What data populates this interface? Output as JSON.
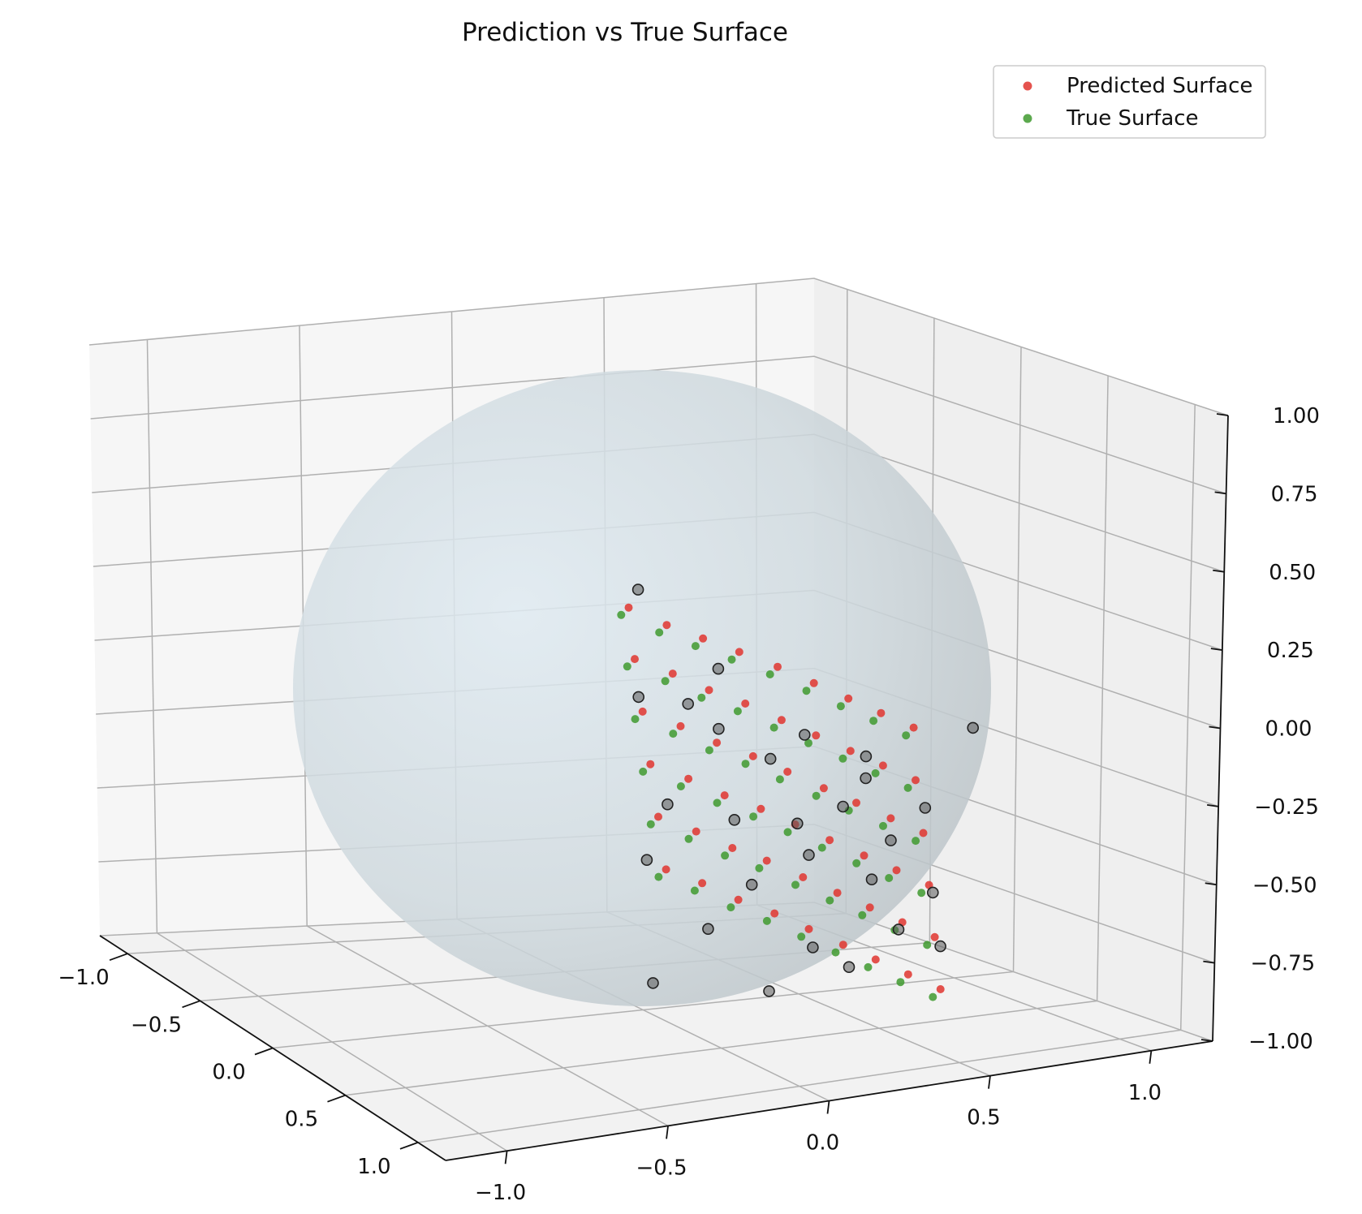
{
  "chart_data": {
    "type": "scatter",
    "projection": "3d",
    "title": "Prediction vs True Surface",
    "xlabel": "",
    "ylabel": "",
    "zlabel": "",
    "xlim": [
      -1.0,
      1.0
    ],
    "ylim": [
      -1.0,
      1.0
    ],
    "zlim": [
      -1.0,
      1.0
    ],
    "x_ticks": [
      "−1.0",
      "−0.5",
      "0.0",
      "0.5",
      "1.0"
    ],
    "y_ticks": [
      "−1.0",
      "−0.5",
      "0.0",
      "0.5",
      "1.0"
    ],
    "z_ticks": [
      "−1.00",
      "−0.75",
      "−0.50",
      "−0.25",
      "0.00",
      "0.25",
      "0.50",
      "0.75",
      "1.00"
    ],
    "grid": true,
    "legend_position": "top-right",
    "surface": {
      "kind": "sphere",
      "radius": 1.0,
      "color": "#c9d8e2",
      "alpha": 0.35
    },
    "series": [
      {
        "name": "Predicted Surface",
        "color": "#e0352f",
        "points": [
          [
            0.93,
            -0.49,
            0.74
          ],
          [
            0.95,
            -0.4,
            0.67
          ],
          [
            0.96,
            -0.31,
            0.61
          ],
          [
            0.97,
            -0.22,
            0.55
          ],
          [
            0.97,
            -0.12,
            0.48
          ],
          [
            0.98,
            -0.03,
            0.41
          ],
          [
            0.98,
            0.06,
            0.34
          ],
          [
            0.97,
            0.15,
            0.27
          ],
          [
            0.96,
            0.24,
            0.2
          ],
          [
            0.9,
            -0.46,
            0.55
          ],
          [
            0.92,
            -0.37,
            0.49
          ],
          [
            0.93,
            -0.28,
            0.42
          ],
          [
            0.94,
            -0.19,
            0.36
          ],
          [
            0.95,
            -0.1,
            0.29
          ],
          [
            0.95,
            -0.01,
            0.22
          ],
          [
            0.95,
            0.08,
            0.15
          ],
          [
            0.94,
            0.17,
            0.08
          ],
          [
            0.93,
            0.26,
            0.01
          ],
          [
            0.88,
            -0.43,
            0.36
          ],
          [
            0.9,
            -0.34,
            0.3
          ],
          [
            0.91,
            -0.25,
            0.23
          ],
          [
            0.92,
            -0.16,
            0.17
          ],
          [
            0.92,
            -0.07,
            0.1
          ],
          [
            0.93,
            0.02,
            0.03
          ],
          [
            0.92,
            0.11,
            -0.04
          ],
          [
            0.92,
            0.2,
            -0.11
          ],
          [
            0.91,
            0.29,
            -0.18
          ],
          [
            0.86,
            -0.4,
            0.17
          ],
          [
            0.88,
            -0.31,
            0.11
          ],
          [
            0.89,
            -0.22,
            0.04
          ],
          [
            0.9,
            -0.13,
            -0.02
          ],
          [
            0.9,
            -0.04,
            -0.09
          ],
          [
            0.9,
            0.05,
            -0.16
          ],
          [
            0.9,
            0.14,
            -0.23
          ],
          [
            0.89,
            0.23,
            -0.3
          ],
          [
            0.88,
            0.32,
            -0.37
          ],
          [
            0.84,
            -0.37,
            -0.02
          ],
          [
            0.86,
            -0.28,
            -0.08
          ],
          [
            0.87,
            -0.19,
            -0.15
          ],
          [
            0.87,
            -0.1,
            -0.21
          ],
          [
            0.88,
            -0.01,
            -0.28
          ],
          [
            0.88,
            0.08,
            -0.35
          ],
          [
            0.87,
            0.17,
            -0.42
          ],
          [
            0.86,
            0.26,
            -0.49
          ],
          [
            0.85,
            0.35,
            -0.56
          ],
          [
            0.82,
            -0.34,
            -0.21
          ],
          [
            0.83,
            -0.25,
            -0.27
          ],
          [
            0.84,
            -0.16,
            -0.34
          ],
          [
            0.85,
            -0.07,
            -0.4
          ],
          [
            0.85,
            0.02,
            -0.47
          ],
          [
            0.85,
            0.11,
            -0.54
          ],
          [
            0.84,
            0.2,
            -0.61
          ],
          [
            0.83,
            0.29,
            -0.68
          ],
          [
            0.82,
            0.38,
            -0.75
          ]
        ]
      },
      {
        "name": "True Surface",
        "color": "#3f9a2f",
        "points": [
          [
            0.91,
            -0.5,
            0.71
          ],
          [
            0.93,
            -0.41,
            0.64
          ],
          [
            0.94,
            -0.32,
            0.58
          ],
          [
            0.95,
            -0.23,
            0.52
          ],
          [
            0.95,
            -0.13,
            0.45
          ],
          [
            0.96,
            -0.04,
            0.38
          ],
          [
            0.96,
            0.05,
            0.31
          ],
          [
            0.95,
            0.14,
            0.24
          ],
          [
            0.94,
            0.23,
            0.17
          ],
          [
            0.88,
            -0.47,
            0.52
          ],
          [
            0.9,
            -0.38,
            0.46
          ],
          [
            0.91,
            -0.29,
            0.39
          ],
          [
            0.92,
            -0.2,
            0.33
          ],
          [
            0.93,
            -0.11,
            0.26
          ],
          [
            0.93,
            -0.02,
            0.19
          ],
          [
            0.93,
            0.07,
            0.12
          ],
          [
            0.92,
            0.16,
            0.05
          ],
          [
            0.91,
            0.25,
            -0.02
          ],
          [
            0.86,
            -0.44,
            0.33
          ],
          [
            0.88,
            -0.35,
            0.27
          ],
          [
            0.89,
            -0.26,
            0.2
          ],
          [
            0.9,
            -0.17,
            0.14
          ],
          [
            0.9,
            -0.08,
            0.07
          ],
          [
            0.91,
            0.01,
            0.0
          ],
          [
            0.9,
            0.1,
            -0.07
          ],
          [
            0.9,
            0.19,
            -0.14
          ],
          [
            0.89,
            0.28,
            -0.21
          ],
          [
            0.84,
            -0.41,
            0.14
          ],
          [
            0.86,
            -0.32,
            0.08
          ],
          [
            0.87,
            -0.23,
            0.01
          ],
          [
            0.88,
            -0.14,
            -0.05
          ],
          [
            0.88,
            -0.05,
            -0.12
          ],
          [
            0.88,
            0.04,
            -0.19
          ],
          [
            0.88,
            0.13,
            -0.26
          ],
          [
            0.87,
            0.22,
            -0.33
          ],
          [
            0.86,
            0.31,
            -0.4
          ],
          [
            0.82,
            -0.38,
            -0.05
          ],
          [
            0.84,
            -0.29,
            -0.11
          ],
          [
            0.85,
            -0.2,
            -0.18
          ],
          [
            0.85,
            -0.11,
            -0.24
          ],
          [
            0.86,
            -0.02,
            -0.31
          ],
          [
            0.86,
            0.07,
            -0.38
          ],
          [
            0.85,
            0.16,
            -0.45
          ],
          [
            0.84,
            0.25,
            -0.52
          ],
          [
            0.83,
            0.34,
            -0.59
          ],
          [
            0.8,
            -0.35,
            -0.24
          ],
          [
            0.81,
            -0.26,
            -0.3
          ],
          [
            0.82,
            -0.17,
            -0.37
          ],
          [
            0.83,
            -0.08,
            -0.43
          ],
          [
            0.83,
            0.01,
            -0.5
          ],
          [
            0.83,
            0.1,
            -0.57
          ],
          [
            0.82,
            0.19,
            -0.64
          ],
          [
            0.81,
            0.28,
            -0.71
          ],
          [
            0.8,
            0.37,
            -0.78
          ]
        ]
      },
      {
        "color": "#5a5a5a",
        "points": [
          [
            0.94,
            -0.47,
            0.8
          ],
          [
            0.96,
            -0.27,
            0.5
          ],
          [
            0.99,
            0.38,
            0.18
          ],
          [
            0.92,
            -0.33,
            0.38
          ],
          [
            0.93,
            -0.03,
            0.22
          ],
          [
            0.9,
            -0.45,
            0.42
          ],
          [
            0.95,
            0.12,
            0.05
          ],
          [
            0.89,
            -0.1,
            0.14
          ],
          [
            0.87,
            -0.36,
            0.03
          ],
          [
            0.91,
            0.08,
            -0.05
          ],
          [
            0.88,
            0.22,
            -0.2
          ],
          [
            0.86,
            -0.18,
            -0.06
          ],
          [
            0.85,
            0.02,
            -0.22
          ],
          [
            0.9,
            0.3,
            -0.1
          ],
          [
            0.84,
            -0.4,
            -0.16
          ],
          [
            0.83,
            -0.12,
            -0.3
          ],
          [
            0.86,
            0.18,
            -0.33
          ],
          [
            0.82,
            0.36,
            -0.42
          ],
          [
            0.8,
            -0.22,
            -0.44
          ],
          [
            0.81,
            0.05,
            -0.55
          ],
          [
            0.84,
            0.26,
            -0.52
          ],
          [
            0.79,
            -0.36,
            -0.6
          ],
          [
            0.8,
            -0.06,
            -0.68
          ],
          [
            0.82,
            0.14,
            -0.63
          ],
          [
            0.78,
            0.4,
            -0.62
          ],
          [
            0.92,
            -0.25,
            0.28
          ],
          [
            0.89,
            0.15,
            0.1
          ],
          [
            0.87,
            -0.02,
            -0.1
          ]
        ]
      }
    ]
  },
  "legend": {
    "items": [
      {
        "label": "Predicted Surface",
        "color": "#e0352f"
      },
      {
        "label": "True Surface",
        "color": "#3f9a2f"
      }
    ]
  }
}
